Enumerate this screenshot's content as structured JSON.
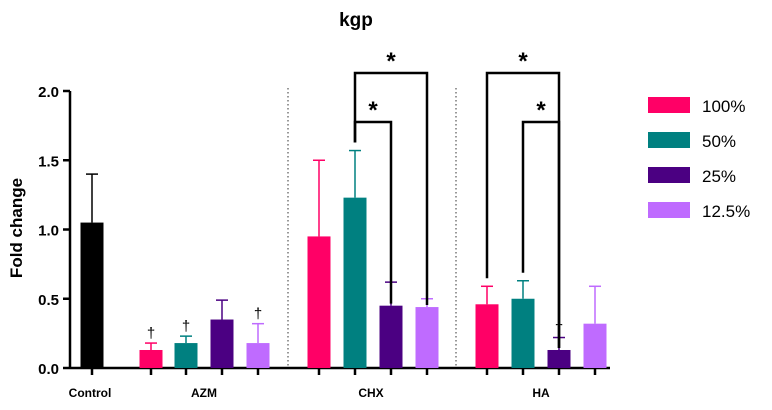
{
  "chart_data": {
    "type": "bar",
    "title": "kgp",
    "ylabel": "Fold change",
    "xlabel": "",
    "ylim": [
      0,
      2.0
    ],
    "yticks": [
      "0.0",
      "0.5",
      "1.0",
      "1.5",
      "2.0"
    ],
    "yticks_values": [
      0,
      0.5,
      1.0,
      1.5,
      2.0
    ],
    "groups": [
      "Control",
      "AZM",
      "CHX",
      "HA"
    ],
    "legend": [
      {
        "name": "100%",
        "color": "#FF0066"
      },
      {
        "name": "50%",
        "color": "#008080"
      },
      {
        "name": "25%",
        "color": "#4B0082"
      },
      {
        "name": "12.5%",
        "color": "#BF6BFF"
      }
    ],
    "control_color": "#000000",
    "bars": [
      {
        "group": "Control",
        "series": "Control",
        "value": 1.05,
        "error": 0.35,
        "marker": ""
      },
      {
        "group": "AZM",
        "series": "100%",
        "value": 0.13,
        "error": 0.05,
        "marker": "†"
      },
      {
        "group": "AZM",
        "series": "50%",
        "value": 0.18,
        "error": 0.05,
        "marker": "†"
      },
      {
        "group": "AZM",
        "series": "25%",
        "value": 0.35,
        "error": 0.14,
        "marker": ""
      },
      {
        "group": "AZM",
        "series": "12.5%",
        "value": 0.18,
        "error": 0.14,
        "marker": "†"
      },
      {
        "group": "CHX",
        "series": "100%",
        "value": 0.95,
        "error": 0.55,
        "marker": ""
      },
      {
        "group": "CHX",
        "series": "50%",
        "value": 1.23,
        "error": 0.34,
        "marker": ""
      },
      {
        "group": "CHX",
        "series": "25%",
        "value": 0.45,
        "error": 0.17,
        "marker": ""
      },
      {
        "group": "CHX",
        "series": "12.5%",
        "value": 0.44,
        "error": 0.06,
        "marker": ""
      },
      {
        "group": "HA",
        "series": "100%",
        "value": 0.46,
        "error": 0.13,
        "marker": ""
      },
      {
        "group": "HA",
        "series": "50%",
        "value": 0.5,
        "error": 0.13,
        "marker": ""
      },
      {
        "group": "HA",
        "series": "25%",
        "value": 0.13,
        "error": 0.09,
        "marker": "†"
      },
      {
        "group": "HA",
        "series": "12.5%",
        "value": 0.32,
        "error": 0.27,
        "marker": ""
      }
    ],
    "significance": [
      {
        "group": "CHX",
        "from_series": "50%",
        "to_series": "25%",
        "label": "*"
      },
      {
        "group": "CHX",
        "from_series": "50%",
        "to_series": "12.5%",
        "label": "*"
      },
      {
        "group": "HA",
        "from_series": "100%",
        "to_series": "25%",
        "label": "*"
      },
      {
        "group": "HA",
        "from_series": "50%",
        "to_series": "25%",
        "label": "*"
      }
    ],
    "separators": "dotted lines between AZM | CHX and CHX | HA",
    "legend_position": "right"
  }
}
